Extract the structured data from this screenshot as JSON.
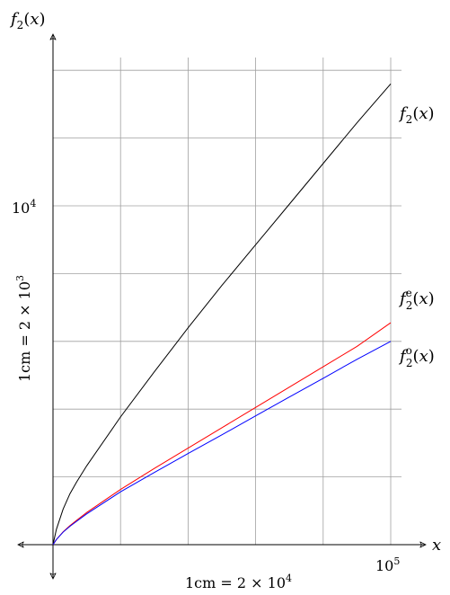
{
  "chart_data": {
    "type": "line",
    "ylabel_top": {
      "f": "f",
      "sub": "2",
      "arg": "(x)"
    },
    "xlabel_axis": "x",
    "x_scale_note": "1cm = 2 × 10",
    "x_scale_exp": "4",
    "y_scale_note": "1cm = 2 × 10",
    "y_scale_exp": "3",
    "x_tick": {
      "base": "10",
      "exp": "5",
      "value": 100000
    },
    "y_tick": {
      "base": "10",
      "exp": "4",
      "value": 10000
    },
    "xlim": [
      0,
      104000
    ],
    "ylim": [
      0,
      15500
    ],
    "grid": true,
    "series": [
      {
        "name": "f2(x)",
        "label": {
          "f": "f",
          "sub": "2",
          "sup": "",
          "arg": "(x)"
        },
        "color": "#000000",
        "x": [
          0,
          1000,
          3000,
          5000,
          7000,
          10000,
          20000,
          30000,
          40000,
          50000,
          60000,
          70000,
          80000,
          90000,
          100000
        ],
        "y": [
          0,
          450,
          1050,
          1500,
          1850,
          2330,
          3770,
          5100,
          6400,
          7650,
          8850,
          10050,
          11250,
          12450,
          13600
        ]
      },
      {
        "name": "f2e(x)",
        "label": {
          "f": "f",
          "sub": "2",
          "sup": "e",
          "arg": "(x)"
        },
        "color": "#ff0000",
        "x": [
          0,
          1000,
          3000,
          5000,
          7000,
          10000,
          20000,
          30000,
          40000,
          50000,
          60000,
          70000,
          80000,
          90000,
          100000
        ],
        "y": [
          0,
          150,
          380,
          560,
          720,
          950,
          1630,
          2250,
          2850,
          3450,
          4050,
          4650,
          5250,
          5850,
          6550
        ]
      },
      {
        "name": "f2o(x)",
        "label": {
          "f": "f",
          "sub": "2",
          "sup": "o",
          "arg": "(x)"
        },
        "color": "#0000ff",
        "x": [
          0,
          1000,
          3000,
          5000,
          7000,
          10000,
          20000,
          30000,
          40000,
          50000,
          60000,
          70000,
          80000,
          90000,
          100000
        ],
        "y": [
          0,
          150,
          370,
          540,
          690,
          910,
          1560,
          2130,
          2690,
          3240,
          3800,
          4360,
          4910,
          5470,
          6000
        ]
      }
    ]
  }
}
